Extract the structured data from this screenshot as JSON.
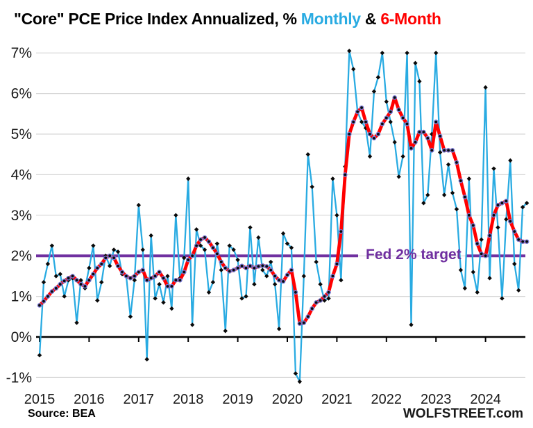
{
  "title": {
    "prefix": "\"Core\" PCE Price Index Annualized, % ",
    "monthly": "Monthly",
    "separator": " & ",
    "six_month": "6-Month"
  },
  "annotation": {
    "fed_target_label": "Fed 2% target"
  },
  "footer": {
    "source": "Source: BEA",
    "site": "WOLFSTREET.com"
  },
  "colors": {
    "monthly_blue": "#29ABE2",
    "six_month_red": "#FF0000",
    "fed_purple": "#7030A0",
    "grid_gray": "#D6D6D6",
    "axis_black": "#000000",
    "marker_black": "#0a0a0a",
    "red_marker_ring": "#7878D2"
  },
  "chart_data": {
    "type": "line",
    "title": "\"Core\" PCE Price Index Annualized, % Monthly & 6-Month",
    "x_start_month": "2015-01",
    "x_end_month": "2024-11",
    "x_tick_labels": [
      "2015",
      "2016",
      "2017",
      "2018",
      "2019",
      "2020",
      "2021",
      "2022",
      "2023",
      "2024"
    ],
    "y_ticks": [
      7,
      6,
      5,
      4,
      3,
      2,
      1,
      0,
      -1
    ],
    "y_tick_labels": [
      "7%",
      "6%",
      "5%",
      "4%",
      "3%",
      "2%",
      "1%",
      "0%",
      "-1%"
    ],
    "ylim": [
      -1.35,
      7.3
    ],
    "grid": "horizontal",
    "legend_position": "in-title",
    "reference_line": {
      "label": "Fed 2% target",
      "value": 2,
      "color": "#7030A0"
    },
    "series": [
      {
        "name": "Monthly",
        "color": "#29ABE2",
        "values": [
          -0.45,
          1.35,
          1.8,
          2.25,
          1.5,
          1.55,
          1.0,
          1.4,
          1.45,
          0.35,
          1.4,
          1.2,
          1.7,
          2.25,
          0.9,
          1.35,
          2.0,
          1.75,
          2.15,
          2.1,
          1.55,
          1.5,
          0.5,
          1.4,
          3.25,
          2.15,
          -0.55,
          2.5,
          0.95,
          1.3,
          0.85,
          1.5,
          0.7,
          3.0,
          1.45,
          1.95,
          3.9,
          0.3,
          2.65,
          2.25,
          2.15,
          1.1,
          1.35,
          2.3,
          1.65,
          0.15,
          2.25,
          2.15,
          1.9,
          0.95,
          1.0,
          2.7,
          1.3,
          2.45,
          1.65,
          1.5,
          1.85,
          1.3,
          0.2,
          2.55,
          2.3,
          2.2,
          -0.9,
          -1.1,
          1.5,
          4.5,
          3.7,
          1.85,
          1.3,
          0.9,
          0.95,
          3.9,
          3.0,
          1.4,
          4.2,
          7.05,
          6.6,
          5.55,
          5.3,
          5.15,
          4.45,
          6.05,
          6.4,
          7.0,
          5.8,
          5.3,
          4.8,
          3.95,
          4.45,
          7.0,
          0.3,
          6.75,
          6.3,
          3.3,
          3.5,
          5.0,
          7.0,
          4.55,
          3.5,
          4.25,
          3.55,
          3.15,
          1.65,
          1.2,
          3.9,
          1.6,
          1.1,
          2.4,
          6.15,
          1.45,
          4.15,
          2.7,
          0.95,
          2.9,
          4.35,
          1.8,
          1.15,
          3.2,
          3.3
        ]
      },
      {
        "name": "6-Month",
        "color": "#FF0000",
        "values": [
          0.78,
          0.88,
          1.0,
          1.12,
          1.2,
          1.3,
          1.38,
          1.45,
          1.5,
          1.4,
          1.3,
          1.25,
          1.4,
          1.55,
          1.7,
          1.8,
          1.95,
          2.0,
          1.95,
          1.75,
          1.6,
          1.5,
          1.45,
          1.5,
          1.6,
          1.65,
          1.4,
          1.45,
          1.5,
          1.6,
          1.45,
          1.25,
          1.25,
          1.4,
          1.4,
          1.6,
          1.9,
          2.0,
          2.25,
          2.4,
          2.45,
          2.35,
          2.2,
          2.05,
          1.85,
          1.7,
          1.62,
          1.65,
          1.7,
          1.75,
          1.7,
          1.75,
          1.7,
          1.74,
          1.76,
          1.74,
          1.65,
          1.5,
          1.4,
          1.37,
          1.53,
          1.65,
          1.1,
          0.33,
          0.35,
          0.5,
          0.7,
          0.85,
          0.9,
          1.0,
          1.1,
          1.5,
          1.8,
          2.6,
          4.0,
          5.0,
          5.3,
          5.55,
          5.65,
          5.3,
          5.0,
          4.9,
          5.0,
          5.25,
          5.4,
          5.55,
          5.9,
          5.6,
          5.4,
          5.25,
          4.65,
          4.8,
          5.05,
          5.05,
          4.9,
          4.6,
          5.3,
          4.95,
          4.6,
          4.6,
          4.6,
          4.3,
          3.85,
          3.45,
          3.0,
          2.75,
          2.3,
          2.05,
          2.0,
          2.5,
          3.0,
          3.25,
          3.3,
          3.35,
          2.85,
          2.6,
          2.4,
          2.35,
          2.35
        ]
      }
    ]
  }
}
